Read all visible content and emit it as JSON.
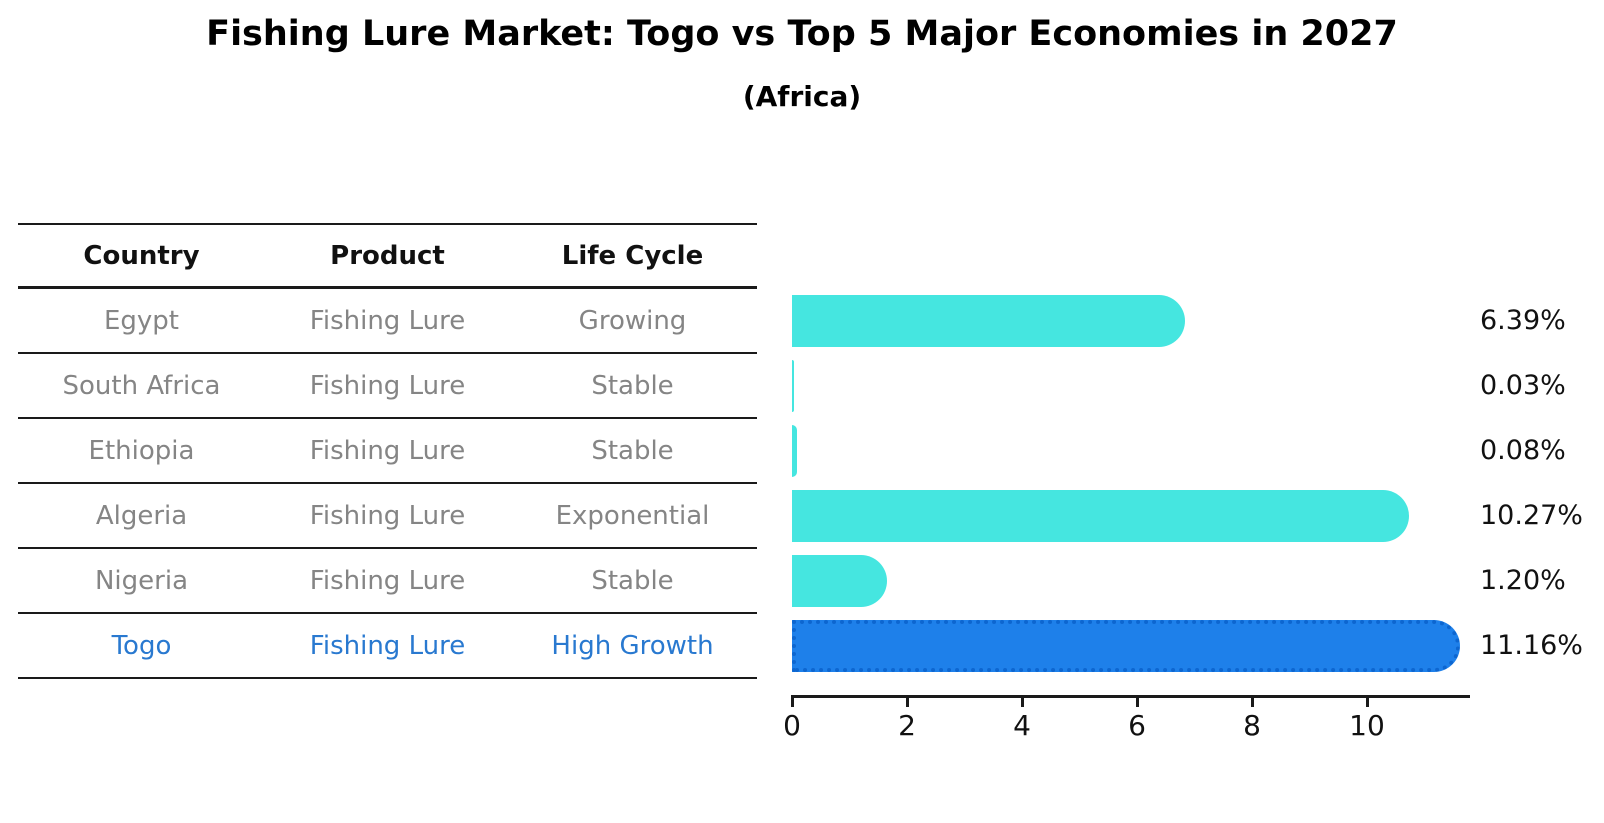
{
  "title": "Fishing Lure Market: Togo vs Top 5 Major Economies in 2027",
  "subtitle": "(Africa)",
  "table": {
    "headers": [
      "Country",
      "Product",
      "Life Cycle"
    ]
  },
  "chart_data": {
    "type": "bar",
    "orientation": "horizontal",
    "title": "Fishing Lure Market: Togo vs Top 5 Major Economies in 2027",
    "subtitle": "(Africa)",
    "xlabel": "",
    "ylabel": "",
    "xlim": [
      0,
      11.76
    ],
    "xticks": [
      0,
      2,
      4,
      6,
      8,
      10
    ],
    "grid": false,
    "legend": false,
    "value_suffix": "%",
    "categories": [
      "Egypt",
      "South Africa",
      "Ethiopia",
      "Algeria",
      "Nigeria",
      "Togo"
    ],
    "values": [
      6.39,
      0.03,
      0.08,
      10.27,
      1.2,
      11.16
    ],
    "rows": [
      {
        "country": "Egypt",
        "product": "Fishing Lure",
        "life_cycle": "Growing",
        "value": 6.39,
        "value_label": "6.39%",
        "highlight": false
      },
      {
        "country": "South Africa",
        "product": "Fishing Lure",
        "life_cycle": "Stable",
        "value": 0.03,
        "value_label": "0.03%",
        "highlight": false
      },
      {
        "country": "Ethiopia",
        "product": "Fishing Lure",
        "life_cycle": "Stable",
        "value": 0.08,
        "value_label": "0.08%",
        "highlight": false
      },
      {
        "country": "Algeria",
        "product": "Fishing Lure",
        "life_cycle": "Exponential",
        "value": 10.27,
        "value_label": "10.27%",
        "highlight": false
      },
      {
        "country": "Nigeria",
        "product": "Fishing Lure",
        "life_cycle": "Stable",
        "value": 1.2,
        "value_label": "1.20%",
        "highlight": false
      },
      {
        "country": "Togo",
        "product": "Fishing Lure",
        "life_cycle": "High Growth",
        "value": 11.16,
        "value_label": "11.16%",
        "highlight": true
      }
    ],
    "colors": {
      "bar": "#45e6e0",
      "highlight_bar": "#1e80ea",
      "highlight_bar_edge": "#0d66d0",
      "highlight_text": "#2979d0",
      "row_text": "#858585",
      "text": "#111111",
      "line": "#1a1a1a"
    }
  }
}
